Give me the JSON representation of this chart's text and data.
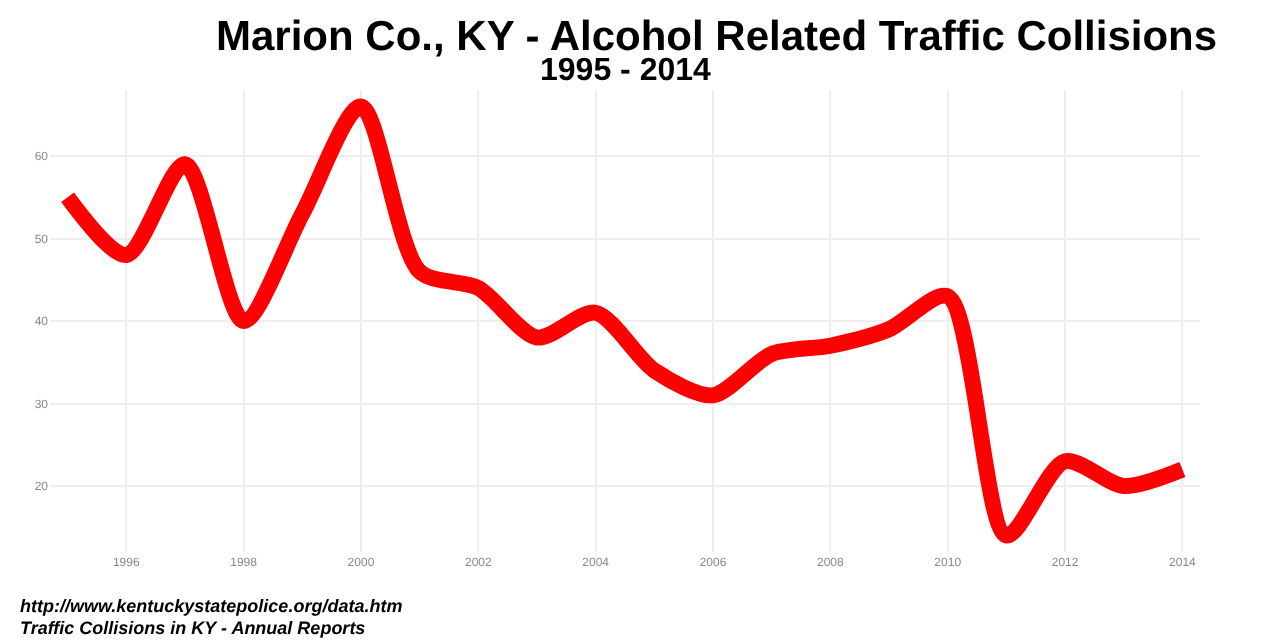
{
  "chart_data": {
    "type": "line",
    "title": "Marion Co., KY - Alcohol Related Traffic Collisions",
    "subtitle": "1995 - 2014",
    "x": [
      1995,
      1996,
      1997,
      1998,
      1999,
      2000,
      2001,
      2002,
      2003,
      2004,
      2005,
      2006,
      2007,
      2008,
      2009,
      2010,
      2011,
      2012,
      2013,
      2014
    ],
    "series": [
      {
        "color": "#ff0000",
        "values": [
          55,
          48,
          59,
          40,
          53,
          66,
          46,
          44,
          38,
          41,
          34,
          31,
          36,
          37,
          39,
          43,
          14,
          23,
          20,
          22
        ]
      }
    ],
    "xlim": [
      1994.7,
      2014.3
    ],
    "xticks": [
      1996,
      1998,
      2000,
      2002,
      2004,
      2006,
      2008,
      2010,
      2012,
      2014
    ],
    "ylim": [
      12,
      68
    ],
    "yticks": [
      20,
      30,
      40,
      50,
      60
    ],
    "grid": true,
    "marker": "none",
    "line_style": "solid",
    "annotations": [
      "http://www.kentuckystatepolice.org/data.htm",
      "Traffic Collisions in KY - Annual Reports"
    ]
  }
}
